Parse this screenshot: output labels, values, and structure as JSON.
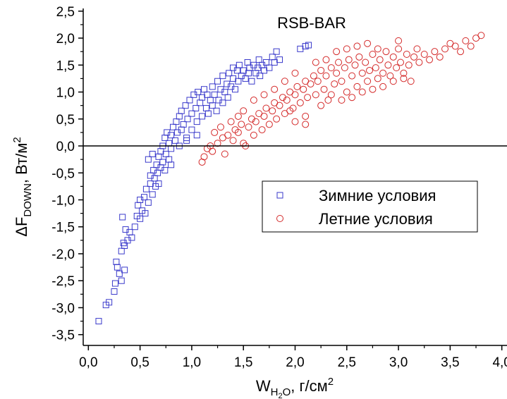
{
  "chart_data": {
    "type": "scatter",
    "title": "RSB-BAR",
    "xlabel": {
      "main": "W",
      "sub": "H",
      "sub2": "2",
      "sub3": "O",
      "rest": ", г/см",
      "sup": "2"
    },
    "ylabel": {
      "main": "ΔF",
      "sub": "DOWN",
      "rest": ", Вт/м",
      "sup": "2"
    },
    "xlim": [
      -0.05,
      4.05
    ],
    "ylim": [
      -3.7,
      2.55
    ],
    "xticks": [
      "0,0",
      "0,5",
      "1,0",
      "1,5",
      "2,0",
      "2,5",
      "3,0",
      "3,5",
      "4,0"
    ],
    "xtick_values": [
      0,
      0.5,
      1.0,
      1.5,
      2.0,
      2.5,
      3.0,
      3.5,
      4.0
    ],
    "yticks": [
      "2,5",
      "2,0",
      "1,5",
      "1,0",
      "0,5",
      "0,0",
      "-0,5",
      "-1,0",
      "-1,5",
      "-2,0",
      "-2,5",
      "-3,0",
      "-3,5"
    ],
    "ytick_values": [
      2.5,
      2.0,
      1.5,
      1.0,
      0.5,
      0.0,
      -0.5,
      -1.0,
      -1.5,
      -2.0,
      -2.5,
      -3.0,
      -3.5
    ],
    "zero_line": 0,
    "grid": false,
    "legend_position": "right",
    "series": [
      {
        "name": "Зимние условия",
        "marker": "square",
        "color": "#3a3acb",
        "points": [
          [
            0.1,
            -3.25
          ],
          [
            0.17,
            -2.95
          ],
          [
            0.2,
            -2.9
          ],
          [
            0.25,
            -2.7
          ],
          [
            0.26,
            -2.55
          ],
          [
            0.27,
            -2.15
          ],
          [
            0.28,
            -2.25
          ],
          [
            0.3,
            -2.37
          ],
          [
            0.32,
            -2.5
          ],
          [
            0.35,
            -2.3
          ],
          [
            0.32,
            -1.95
          ],
          [
            0.34,
            -1.8
          ],
          [
            0.35,
            -1.85
          ],
          [
            0.36,
            -1.55
          ],
          [
            0.38,
            -1.75
          ],
          [
            0.4,
            -1.6
          ],
          [
            0.42,
            -1.7
          ],
          [
            0.33,
            -1.32
          ],
          [
            0.45,
            -1.5
          ],
          [
            0.47,
            -1.3
          ],
          [
            0.48,
            -1.1
          ],
          [
            0.5,
            -1.35
          ],
          [
            0.5,
            -1.0
          ],
          [
            0.52,
            -1.2
          ],
          [
            0.54,
            -0.95
          ],
          [
            0.55,
            -1.25
          ],
          [
            0.56,
            -0.8
          ],
          [
            0.58,
            -1.05
          ],
          [
            0.6,
            -0.7
          ],
          [
            0.6,
            -0.55
          ],
          [
            0.62,
            -0.9
          ],
          [
            0.63,
            -0.45
          ],
          [
            0.64,
            -0.6
          ],
          [
            0.65,
            -0.75
          ],
          [
            0.66,
            -0.35
          ],
          [
            0.67,
            -0.5
          ],
          [
            0.68,
            -0.2
          ],
          [
            0.7,
            -0.4
          ],
          [
            0.7,
            -0.1
          ],
          [
            0.72,
            0.0
          ],
          [
            0.72,
            -0.3
          ],
          [
            0.74,
            0.15
          ],
          [
            0.75,
            -0.15
          ],
          [
            0.76,
            0.25
          ],
          [
            0.78,
            0.05
          ],
          [
            0.78,
            -0.25
          ],
          [
            0.8,
            0.2
          ],
          [
            0.8,
            -0.05
          ],
          [
            0.82,
            0.35
          ],
          [
            0.84,
            0.1
          ],
          [
            0.85,
            0.45
          ],
          [
            0.86,
            0.25
          ],
          [
            0.88,
            0.55
          ],
          [
            0.88,
            0.0
          ],
          [
            0.9,
            0.3
          ],
          [
            0.9,
            0.65
          ],
          [
            0.92,
            0.4
          ],
          [
            0.94,
            0.75
          ],
          [
            0.95,
            0.15
          ],
          [
            0.96,
            0.5
          ],
          [
            0.98,
            0.85
          ],
          [
            1.0,
            0.6
          ],
          [
            1.0,
            0.3
          ],
          [
            1.02,
            0.95
          ],
          [
            1.04,
            0.7
          ],
          [
            1.05,
            0.45
          ],
          [
            1.06,
            1.0
          ],
          [
            1.08,
            0.8
          ],
          [
            1.1,
            0.55
          ],
          [
            1.1,
            0.9
          ],
          [
            1.12,
            1.05
          ],
          [
            1.14,
            0.7
          ],
          [
            1.15,
            0.95
          ],
          [
            1.16,
            0.6
          ],
          [
            1.18,
            0.85
          ],
          [
            1.2,
            1.1
          ],
          [
            1.2,
            0.75
          ],
          [
            1.22,
            0.95
          ],
          [
            1.24,
            0.65
          ],
          [
            1.25,
            1.2
          ],
          [
            1.26,
            0.85
          ],
          [
            1.28,
            1.05
          ],
          [
            1.3,
            0.8
          ],
          [
            1.3,
            1.3
          ],
          [
            1.32,
            1.0
          ],
          [
            1.34,
            1.15
          ],
          [
            1.35,
            0.9
          ],
          [
            1.36,
            1.35
          ],
          [
            1.38,
            1.1
          ],
          [
            1.4,
            1.25
          ],
          [
            1.4,
            1.45
          ],
          [
            1.42,
            1.05
          ],
          [
            1.44,
            1.4
          ],
          [
            1.45,
            1.2
          ],
          [
            1.46,
            1.5
          ],
          [
            1.48,
            1.3
          ],
          [
            1.5,
            1.4
          ],
          [
            1.52,
            1.25
          ],
          [
            1.54,
            1.55
          ],
          [
            1.55,
            1.35
          ],
          [
            1.56,
            1.45
          ],
          [
            1.58,
            1.2
          ],
          [
            1.6,
            1.5
          ],
          [
            1.62,
            1.35
          ],
          [
            1.64,
            1.45
          ],
          [
            1.65,
            1.6
          ],
          [
            1.66,
            1.3
          ],
          [
            1.68,
            1.5
          ],
          [
            1.7,
            1.4
          ],
          [
            1.72,
            1.55
          ],
          [
            1.75,
            1.45
          ],
          [
            1.78,
            1.65
          ],
          [
            1.8,
            1.55
          ],
          [
            1.82,
            1.75
          ],
          [
            1.85,
            1.6
          ],
          [
            2.05,
            1.8
          ],
          [
            2.1,
            1.85
          ],
          [
            2.13,
            1.87
          ],
          [
            0.95,
            0.1
          ],
          [
            1.05,
            0.2
          ],
          [
            0.58,
            -0.25
          ],
          [
            0.62,
            -0.15
          ],
          [
            0.68,
            -0.7
          ],
          [
            0.74,
            -0.45
          ],
          [
            0.8,
            -0.35
          ]
        ]
      },
      {
        "name": "Летние условия",
        "marker": "circle",
        "color": "#d42a2a",
        "points": [
          [
            1.1,
            -0.3
          ],
          [
            1.12,
            -0.2
          ],
          [
            1.18,
            0.0
          ],
          [
            1.2,
            -0.1
          ],
          [
            1.25,
            0.05
          ],
          [
            1.3,
            0.15
          ],
          [
            1.32,
            -0.15
          ],
          [
            1.35,
            0.2
          ],
          [
            1.4,
            0.1
          ],
          [
            1.42,
            0.3
          ],
          [
            1.45,
            0.25
          ],
          [
            1.48,
            0.4
          ],
          [
            1.5,
            0.05
          ],
          [
            1.52,
            0.0
          ],
          [
            1.55,
            0.35
          ],
          [
            1.58,
            0.5
          ],
          [
            1.6,
            0.2
          ],
          [
            1.62,
            0.45
          ],
          [
            1.65,
            0.6
          ],
          [
            1.68,
            0.3
          ],
          [
            1.7,
            0.55
          ],
          [
            1.72,
            0.7
          ],
          [
            1.75,
            0.4
          ],
          [
            1.78,
            0.65
          ],
          [
            1.8,
            0.8
          ],
          [
            1.82,
            0.5
          ],
          [
            1.85,
            0.75
          ],
          [
            1.88,
            0.9
          ],
          [
            1.9,
            0.6
          ],
          [
            1.92,
            0.85
          ],
          [
            1.95,
            1.0
          ],
          [
            1.98,
            0.7
          ],
          [
            2.0,
            0.95
          ],
          [
            2.02,
            1.1
          ],
          [
            2.05,
            0.8
          ],
          [
            2.08,
            1.05
          ],
          [
            2.1,
            0.4
          ],
          [
            2.1,
            1.2
          ],
          [
            2.12,
            0.9
          ],
          [
            2.15,
            1.15
          ],
          [
            2.18,
            1.3
          ],
          [
            2.2,
            0.95
          ],
          [
            2.22,
            1.2
          ],
          [
            2.25,
            1.4
          ],
          [
            2.28,
            1.05
          ],
          [
            2.3,
            1.3
          ],
          [
            2.32,
            0.85
          ],
          [
            2.35,
            1.45
          ],
          [
            2.38,
            1.15
          ],
          [
            2.4,
            1.35
          ],
          [
            2.42,
            1.55
          ],
          [
            2.45,
            1.2
          ],
          [
            2.48,
            1.45
          ],
          [
            2.5,
            1.0
          ],
          [
            2.52,
            1.6
          ],
          [
            2.55,
            1.3
          ],
          [
            2.58,
            1.5
          ],
          [
            2.6,
            1.1
          ],
          [
            2.62,
            1.65
          ],
          [
            2.65,
            1.35
          ],
          [
            2.68,
            1.55
          ],
          [
            2.7,
            1.2
          ],
          [
            2.72,
            1.4
          ],
          [
            2.75,
            1.7
          ],
          [
            2.78,
            1.45
          ],
          [
            2.8,
            1.25
          ],
          [
            2.82,
            1.6
          ],
          [
            2.85,
            1.35
          ],
          [
            2.88,
            1.75
          ],
          [
            2.9,
            1.5
          ],
          [
            2.92,
            1.3
          ],
          [
            2.95,
            1.65
          ],
          [
            2.98,
            1.45
          ],
          [
            3.0,
            1.8
          ],
          [
            3.02,
            1.55
          ],
          [
            3.05,
            1.35
          ],
          [
            3.08,
            1.7
          ],
          [
            3.1,
            1.5
          ],
          [
            3.12,
            1.2
          ],
          [
            3.15,
            1.65
          ],
          [
            3.18,
            1.8
          ],
          [
            3.2,
            1.55
          ],
          [
            3.25,
            1.7
          ],
          [
            3.3,
            1.6
          ],
          [
            3.35,
            1.75
          ],
          [
            3.4,
            1.65
          ],
          [
            3.45,
            1.8
          ],
          [
            3.5,
            1.9
          ],
          [
            3.55,
            1.85
          ],
          [
            3.6,
            1.75
          ],
          [
            3.65,
            1.95
          ],
          [
            3.7,
            1.85
          ],
          [
            3.75,
            2.0
          ],
          [
            3.8,
            2.05
          ],
          [
            2.1,
            0.55
          ],
          [
            2.0,
            0.45
          ],
          [
            1.95,
            0.65
          ],
          [
            2.25,
            0.75
          ],
          [
            2.35,
            0.95
          ],
          [
            2.45,
            0.85
          ],
          [
            2.55,
            0.9
          ],
          [
            2.65,
            1.0
          ],
          [
            2.75,
            1.05
          ],
          [
            2.85,
            1.1
          ],
          [
            2.95,
            1.2
          ],
          [
            3.05,
            1.25
          ],
          [
            1.6,
            0.85
          ],
          [
            1.7,
            0.95
          ],
          [
            1.8,
            1.05
          ],
          [
            1.9,
            1.2
          ],
          [
            2.0,
            1.35
          ],
          [
            2.2,
            1.55
          ],
          [
            2.3,
            1.6
          ],
          [
            2.4,
            1.75
          ],
          [
            2.5,
            1.8
          ],
          [
            2.6,
            1.85
          ],
          [
            2.7,
            1.9
          ],
          [
            2.8,
            1.8
          ],
          [
            3.0,
            1.95
          ],
          [
            1.5,
            0.65
          ],
          [
            1.45,
            0.55
          ],
          [
            1.38,
            0.45
          ],
          [
            1.28,
            0.35
          ],
          [
            1.22,
            0.25
          ],
          [
            1.15,
            -0.05
          ]
        ]
      }
    ]
  }
}
